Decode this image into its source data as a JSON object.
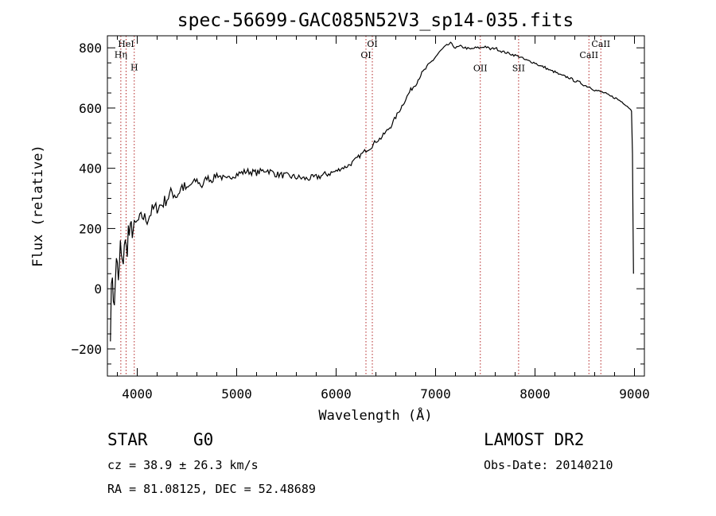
{
  "chart_data": {
    "type": "line",
    "title": "spec-56699-GAC085N52V3_sp14-035.fits",
    "xlabel": "Wavelength (Å)",
    "ylabel": "Flux (relative)",
    "xlim": [
      3700,
      9100
    ],
    "ylim": [
      -290,
      840
    ],
    "xticks": [
      4000,
      5000,
      6000,
      7000,
      8000,
      9000
    ],
    "yticks": [
      -200,
      0,
      200,
      400,
      600,
      800
    ],
    "grid": false,
    "line_color": "#000000",
    "marker_color": "#b22222",
    "series": [
      {
        "x": [
          3730,
          3750,
          3770,
          3790,
          3810,
          3830,
          3850,
          3870,
          3890,
          3910,
          3930,
          3950,
          3970,
          4000,
          4050,
          4100,
          4150,
          4200,
          4250,
          4300,
          4350,
          4400,
          4450,
          4500,
          4550,
          4600,
          4650,
          4700,
          4750,
          4800,
          4850,
          4900,
          4950,
          5000,
          5100,
          5200,
          5300,
          5400,
          5500,
          5600,
          5700,
          5800,
          5900,
          6000,
          6050,
          6100,
          6150,
          6200,
          6250,
          6300,
          6350,
          6400,
          6450,
          6500,
          6550,
          6600,
          6650,
          6700,
          6750,
          6800,
          6850,
          6900,
          6950,
          7000,
          7050,
          7100,
          7150,
          7200,
          7250,
          7300,
          7350,
          7400,
          7450,
          7500,
          7550,
          7600,
          7650,
          7700,
          7750,
          7800,
          7850,
          7900,
          7950,
          8000,
          8050,
          8100,
          8150,
          8200,
          8250,
          8300,
          8350,
          8400,
          8450,
          8500,
          8550,
          8600,
          8650,
          8700,
          8750,
          8800,
          8850,
          8900,
          8950,
          8970,
          8980,
          8990
        ],
        "y": [
          -120,
          60,
          -80,
          120,
          0,
          140,
          60,
          160,
          120,
          190,
          170,
          210,
          180,
          220,
          240,
          230,
          260,
          270,
          280,
          300,
          320,
          310,
          340,
          330,
          350,
          360,
          340,
          370,
          360,
          380,
          370,
          360,
          375,
          380,
          390,
          385,
          395,
          380,
          375,
          370,
          365,
          370,
          380,
          390,
          400,
          405,
          415,
          430,
          445,
          460,
          470,
          490,
          500,
          520,
          540,
          570,
          600,
          630,
          660,
          680,
          710,
          730,
          750,
          770,
          790,
          805,
          815,
          800,
          805,
          800,
          795,
          800,
          800,
          805,
          795,
          800,
          790,
          785,
          780,
          775,
          770,
          760,
          755,
          750,
          740,
          735,
          725,
          720,
          710,
          705,
          700,
          690,
          685,
          675,
          670,
          660,
          655,
          650,
          640,
          635,
          625,
          615,
          600,
          590,
          450,
          50
        ]
      }
    ],
    "lines": [
      {
        "label": "Hη",
        "x": 3835,
        "label_y": 767
      },
      {
        "label": "HeI",
        "x": 3888,
        "label_y": 803
      },
      {
        "label": "H",
        "x": 3970,
        "label_y": 725
      },
      {
        "label": "OI",
        "x": 6300,
        "label_y": 766
      },
      {
        "label": "OI",
        "x": 6364,
        "label_y": 803
      },
      {
        "label": "OII",
        "x": 7450,
        "label_y": 723
      },
      {
        "label": "SII",
        "x": 7835,
        "label_y": 723
      },
      {
        "label": "CaII",
        "x": 8542,
        "label_y": 766
      },
      {
        "label": "CaII",
        "x": 8662,
        "label_y": 803
      }
    ]
  },
  "info": {
    "class_label": "STAR",
    "subclass": "G0",
    "survey": "LAMOST DR2",
    "cz": "cz = 38.9 ± 26.3 km/s",
    "obs_date": "Obs-Date: 20140210",
    "radec": "RA =  81.08125, DEC =  52.48689"
  }
}
